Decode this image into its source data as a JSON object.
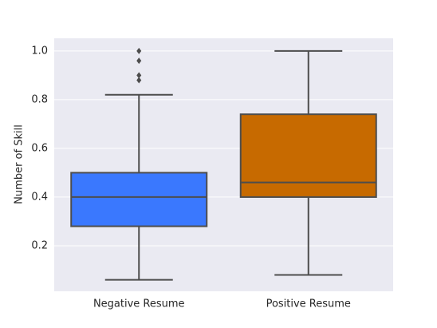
{
  "chart_data": {
    "type": "box",
    "y_label": "Number of Skill",
    "categories": [
      "Negative Resume",
      "Positive Resume"
    ],
    "colors": [
      "#3a78fe",
      "#c76a00"
    ],
    "boxes": [
      {
        "min": 0.06,
        "q1": 0.28,
        "median": 0.4,
        "q3": 0.5,
        "max": 0.82,
        "outliers": [
          0.88,
          0.9,
          0.96,
          1.0
        ]
      },
      {
        "min": 0.08,
        "q1": 0.4,
        "median": 0.46,
        "q3": 0.74,
        "max": 1.0,
        "outliers": []
      }
    ],
    "ylim": [
      0.013,
      1.052
    ],
    "yticks": [
      {
        "value": 0.2,
        "label": "0.2"
      },
      {
        "value": 0.4,
        "label": "0.4"
      },
      {
        "value": 0.6,
        "label": "0.6"
      },
      {
        "value": 0.8,
        "label": "0.8"
      },
      {
        "value": 1.0,
        "label": "1.0"
      }
    ],
    "grid": true
  }
}
